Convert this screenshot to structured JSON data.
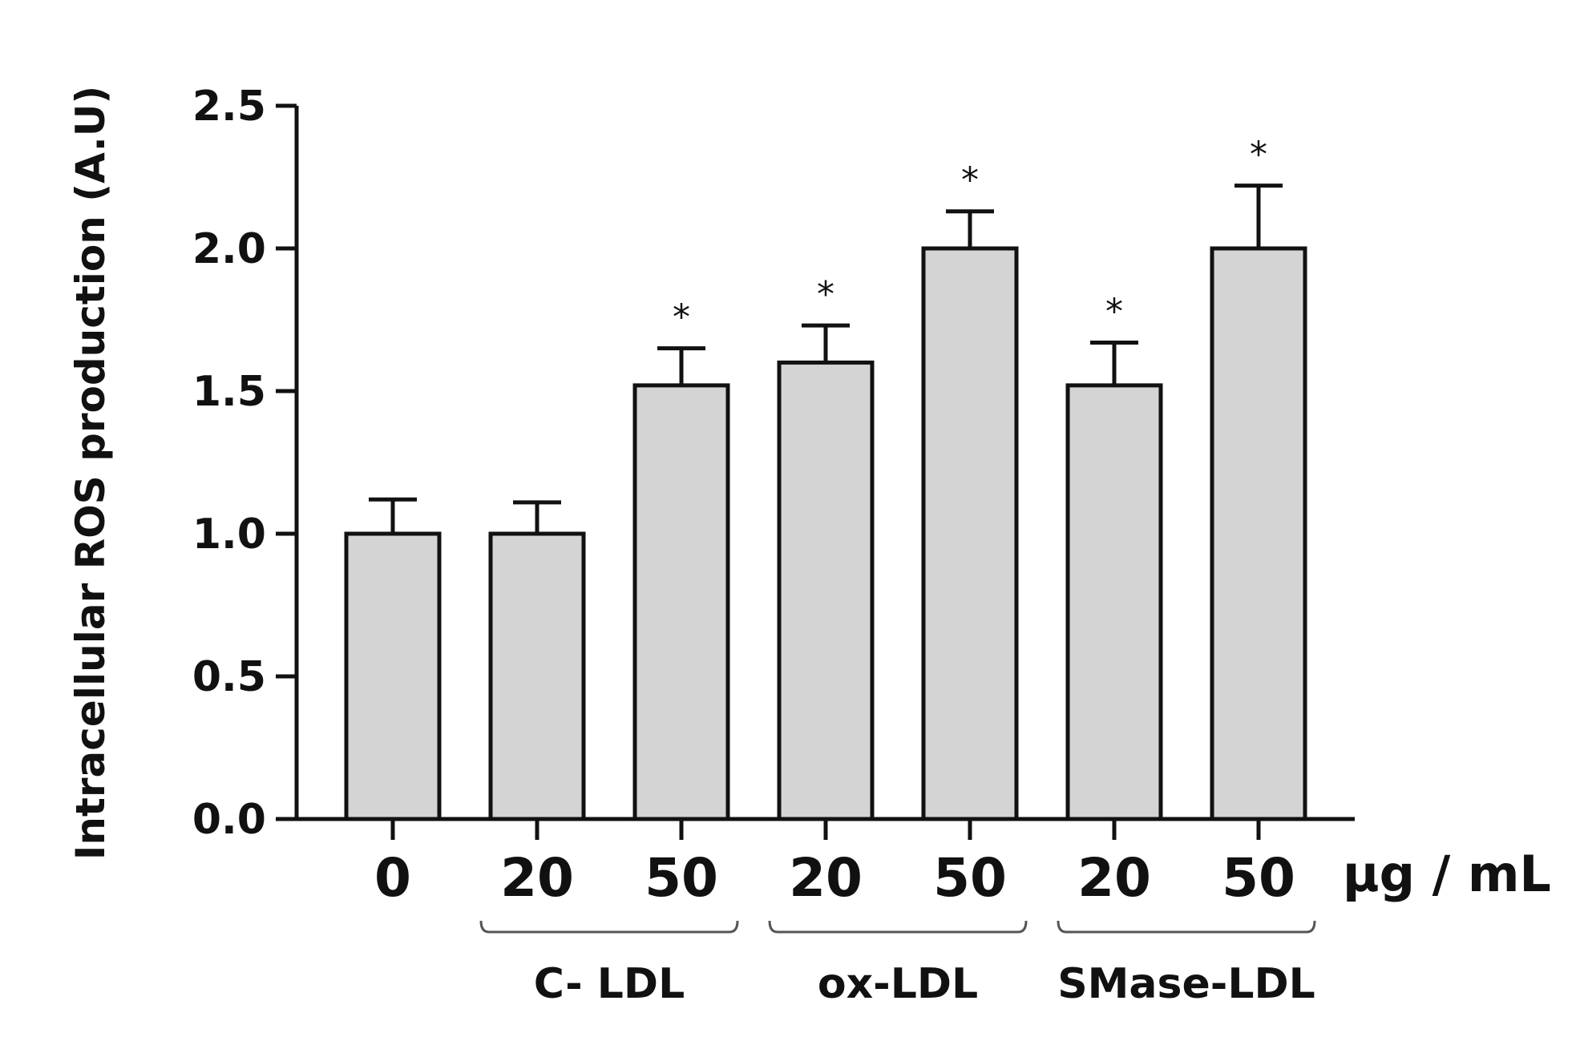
{
  "chart_data": {
    "type": "bar",
    "title": "",
    "ylabel": "Intracellular ROS production (A.U)",
    "xlabel": "µg / mL",
    "ylim": [
      0,
      2.5
    ],
    "yticks": [
      "0.0",
      "0.5",
      "1.0",
      "1.5",
      "2.0",
      "2.5"
    ],
    "ytick_values": [
      0,
      0.5,
      1.0,
      1.5,
      2.0,
      2.5
    ],
    "categories": [
      "0",
      "20",
      "50",
      "20",
      "50",
      "20",
      "50"
    ],
    "values": [
      1.0,
      1.0,
      1.52,
      1.6,
      2.0,
      1.52,
      2.0
    ],
    "errors": [
      0.12,
      0.11,
      0.13,
      0.13,
      0.13,
      0.15,
      0.22
    ],
    "significant": [
      false,
      false,
      true,
      true,
      true,
      true,
      true
    ],
    "significance_marker": "*",
    "groups": [
      {
        "label": "C- LDL",
        "bars": [
          1,
          2
        ]
      },
      {
        "label": "ox-LDL",
        "bars": [
          3,
          4
        ]
      },
      {
        "label": "SMase-LDL",
        "bars": [
          5,
          6
        ]
      }
    ],
    "bar_color": "#d4d4d4",
    "edge_color": "#111111",
    "grid": false
  }
}
